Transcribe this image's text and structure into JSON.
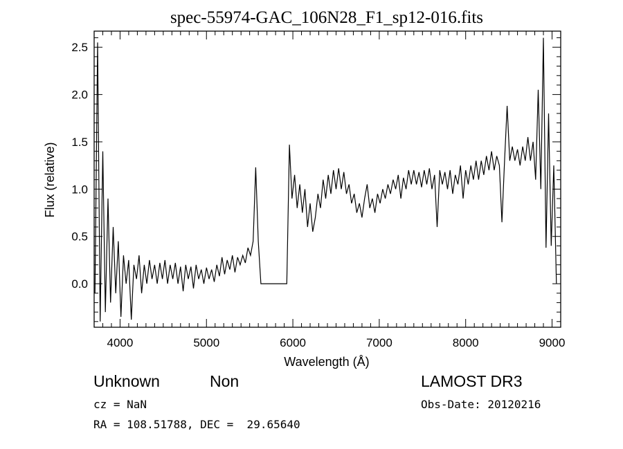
{
  "chart_data": {
    "type": "line",
    "title": "spec-55974-GAC_106N28_F1_sp12-016.fits",
    "xlabel": "Wavelength (Å)",
    "ylabel": "Flux (relative)",
    "xlim": [
      3700,
      9100
    ],
    "ylim": [
      -0.46,
      2.67
    ],
    "xticks": [
      4000,
      5000,
      6000,
      7000,
      8000,
      9000
    ],
    "xtick_labels": [
      "4000",
      "5000",
      "6000",
      "7000",
      "8000",
      "9000"
    ],
    "yticks": [
      0.0,
      0.5,
      1.0,
      1.5,
      2.0,
      2.5
    ],
    "ytick_labels": [
      "0.0",
      "0.5",
      "1.0",
      "1.5",
      "2.0",
      "2.5"
    ],
    "grid": false,
    "x_start": 3710,
    "x_step": 30,
    "series": [
      {
        "name": "spectrum",
        "color": "#000000",
        "values": [
          -0.1,
          2.55,
          -0.4,
          1.4,
          -0.3,
          0.9,
          -0.2,
          0.6,
          -0.1,
          0.45,
          -0.35,
          0.3,
          0.0,
          0.25,
          -0.38,
          0.2,
          0.05,
          0.3,
          -0.1,
          0.2,
          0.0,
          0.25,
          0.05,
          0.2,
          0.0,
          0.22,
          0.05,
          0.25,
          0.0,
          0.2,
          0.05,
          0.22,
          0.0,
          0.18,
          -0.08,
          0.2,
          0.05,
          0.18,
          -0.05,
          0.2,
          0.05,
          0.15,
          0.0,
          0.17,
          0.05,
          0.15,
          0.02,
          0.2,
          0.08,
          0.28,
          0.1,
          0.25,
          0.15,
          0.3,
          0.12,
          0.28,
          0.2,
          0.3,
          0.22,
          0.38,
          0.3,
          0.45,
          1.23,
          0.45,
          0.0,
          0.0,
          0.0,
          0.0,
          0.0,
          0.0,
          0.0,
          0.0,
          0.0,
          0.0,
          0.0,
          1.47,
          0.9,
          1.15,
          0.8,
          1.05,
          0.75,
          1.0,
          0.6,
          0.85,
          0.55,
          0.7,
          0.95,
          0.8,
          1.1,
          0.9,
          1.15,
          0.95,
          1.2,
          1.0,
          1.22,
          1.0,
          1.18,
          0.95,
          1.05,
          0.85,
          0.95,
          0.75,
          0.85,
          0.7,
          0.9,
          1.05,
          0.8,
          0.9,
          0.75,
          0.95,
          0.85,
          1.0,
          0.9,
          1.05,
          0.95,
          1.1,
          1.0,
          1.15,
          0.9,
          1.12,
          1.0,
          1.2,
          1.05,
          1.2,
          1.05,
          1.18,
          1.02,
          1.2,
          1.05,
          1.22,
          1.0,
          1.15,
          0.6,
          1.2,
          1.05,
          1.18,
          1.0,
          1.2,
          0.95,
          1.15,
          1.05,
          1.25,
          0.9,
          1.2,
          1.05,
          1.25,
          1.1,
          1.3,
          1.1,
          1.3,
          1.15,
          1.35,
          1.2,
          1.4,
          1.2,
          1.35,
          1.25,
          0.65,
          1.3,
          1.88,
          1.3,
          1.45,
          1.3,
          1.42,
          1.25,
          1.45,
          1.3,
          1.55,
          1.3,
          1.5,
          1.1,
          2.05,
          1.0,
          2.6,
          0.38,
          1.8,
          0.4,
          1.25,
          0.0
        ]
      }
    ]
  },
  "annotations": {
    "object_class": "Unknown",
    "subclass": "Non",
    "survey": "LAMOST DR3",
    "redshift": "cz = NaN",
    "obs_date": "Obs-Date: 20120216",
    "coords": "RA = 108.51788, DEC =  29.65640"
  }
}
